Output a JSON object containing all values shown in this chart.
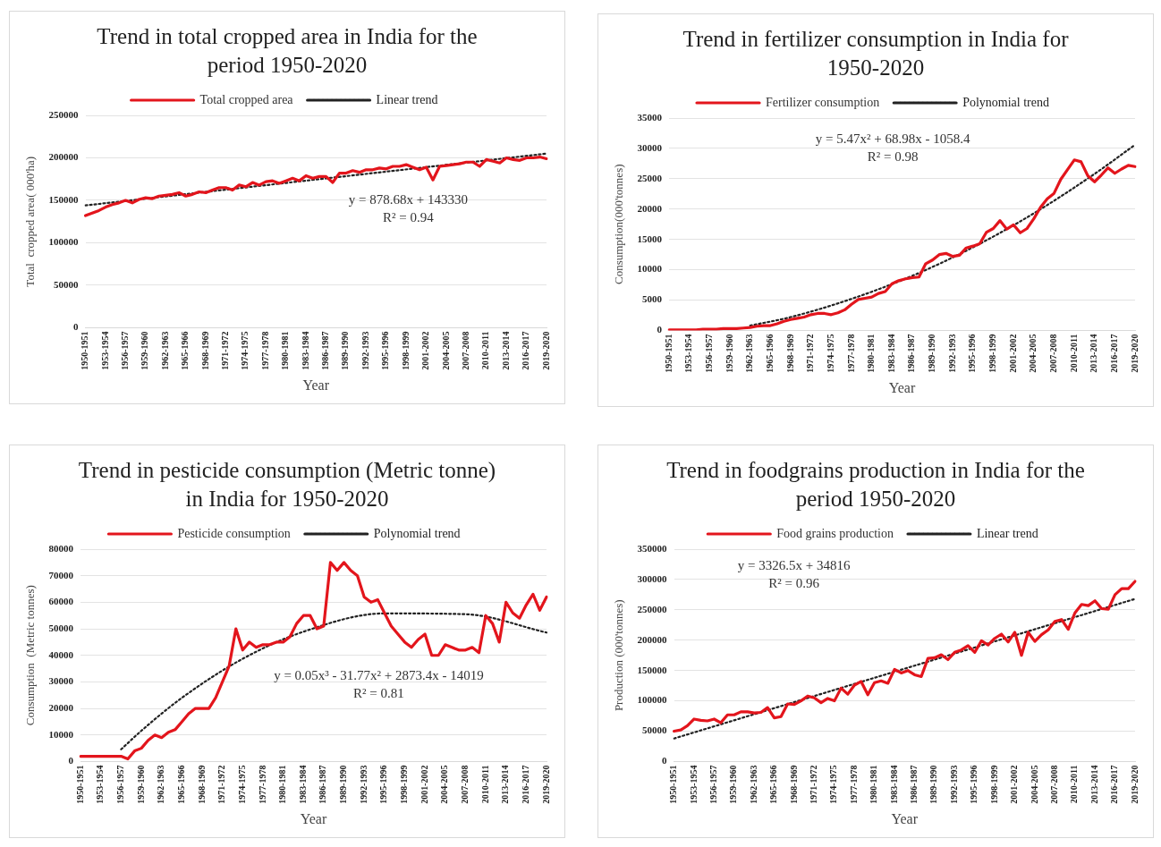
{
  "chart_data": [
    {
      "type": "line",
      "title": "Trend in total cropped area in India for the period 1950-2020",
      "xlabel": "Year",
      "ylabel": "Total  cropped area( 000'ha)",
      "legend": "top",
      "grid": "y",
      "marker": "none",
      "categories": [
        "1950-1951",
        null,
        null,
        "1953-1954",
        null,
        null,
        "1956-1957",
        null,
        null,
        "1959-1960",
        null,
        null,
        "1962-1963",
        null,
        null,
        "1965-1966",
        null,
        null,
        "1968-1969",
        null,
        null,
        "1971-1972",
        null,
        null,
        "1974-1975",
        null,
        null,
        "1977-1978",
        null,
        null,
        "1980-1981",
        null,
        null,
        "1983-1984",
        null,
        null,
        "1986-1987",
        null,
        null,
        "1989-1990",
        null,
        null,
        "1992-1993",
        null,
        null,
        "1995-1996",
        null,
        null,
        "1998-1999",
        null,
        null,
        "2001-2002",
        null,
        null,
        "2004-2005",
        null,
        null,
        "2007-2008",
        null,
        null,
        "2010-2011",
        null,
        null,
        "2013-2014",
        null,
        null,
        "2016-2017",
        null,
        null,
        "2019-2020"
      ],
      "ylim": [
        0,
        250000
      ],
      "yticks": [
        0,
        50000,
        100000,
        150000,
        200000,
        250000
      ],
      "series": [
        {
          "name": "Total cropped area",
          "type": "line",
          "color": "#e3151c",
          "line_style": "solid",
          "values": [
            132000,
            135000,
            138000,
            142000,
            145000,
            147000,
            150000,
            147000,
            151000,
            153000,
            152000,
            155000,
            156000,
            157000,
            159000,
            155000,
            157000,
            160000,
            159000,
            162000,
            165000,
            165000,
            162000,
            168000,
            166000,
            171000,
            168000,
            172000,
            173000,
            170000,
            173000,
            176000,
            173000,
            179000,
            176000,
            178000,
            178000,
            171000,
            182000,
            182000,
            185000,
            183000,
            186000,
            186000,
            188000,
            187000,
            190000,
            190000,
            192000,
            189000,
            186000,
            189000,
            174000,
            190000,
            191000,
            192000,
            193000,
            195000,
            195000,
            190000,
            198000,
            196000,
            194000,
            200000,
            198000,
            197000,
            200000,
            200000,
            201000,
            199000
          ]
        },
        {
          "name": "Linear trend",
          "type": "line",
          "color": "#222222",
          "line_style": "dotted",
          "x": [
            "1950-1951",
            "2019-2020"
          ],
          "values": [
            144000,
            205000
          ]
        }
      ],
      "annotations": [
        "y = 878.68x + 143330",
        "R² = 0.94"
      ]
    },
    {
      "type": "line",
      "title": "Trend in fertilizer consumption in India for 1950-2020",
      "xlabel": "Year",
      "ylabel": "Consumption(000'tonnes)",
      "legend": "top",
      "grid": "y",
      "marker": "none",
      "categories": [
        "1950-1951",
        null,
        null,
        "1953-1954",
        null,
        null,
        "1956-1957",
        null,
        null,
        "1959-1960",
        null,
        null,
        "1962-1963",
        null,
        null,
        "1965-1966",
        null,
        null,
        "1968-1969",
        null,
        null,
        "1971-1972",
        null,
        null,
        "1974-1975",
        null,
        null,
        "1977-1978",
        null,
        null,
        "1980-1981",
        null,
        null,
        "1983-1984",
        null,
        null,
        "1986-1987",
        null,
        null,
        "1989-1990",
        null,
        null,
        "1992-1993",
        null,
        null,
        "1995-1996",
        null,
        null,
        "1998-1999",
        null,
        null,
        "2001-2002",
        null,
        null,
        "2004-2005",
        null,
        null,
        "2007-2008",
        null,
        null,
        "2010-2011",
        null,
        null,
        "2013-2014",
        null,
        null,
        "2016-2017",
        null,
        null,
        "2019-2020"
      ],
      "ylim": [
        0,
        35000
      ],
      "yticks": [
        0,
        5000,
        10000,
        15000,
        20000,
        25000,
        30000,
        35000
      ],
      "series": [
        {
          "name": "Fertilizer consumption",
          "type": "line",
          "color": "#e3151c",
          "line_style": "solid",
          "values": [
            100,
            100,
            100,
            100,
            100,
            200,
            200,
            200,
            300,
            300,
            300,
            400,
            500,
            700,
            800,
            800,
            1100,
            1500,
            1800,
            2000,
            2200,
            2600,
            2800,
            2800,
            2600,
            2900,
            3400,
            4300,
            5100,
            5300,
            5500,
            6100,
            6400,
            7700,
            8200,
            8500,
            8700,
            8800,
            11000,
            11600,
            12500,
            12700,
            12200,
            12400,
            13600,
            13900,
            14300,
            16200,
            16800,
            18100,
            16700,
            17400,
            16100,
            16800,
            18400,
            20300,
            21700,
            22600,
            24900,
            26500,
            28100,
            27800,
            25500,
            24500,
            25600,
            26800,
            25900,
            26600,
            27200,
            27000
          ]
        },
        {
          "name": "Polynomial trend",
          "type": "line",
          "color": "#222222",
          "line_style": "dotted",
          "x": [
            "1962-1963",
            "1968-1969",
            "1977-1978",
            "1986-1987",
            "1995-1996",
            "2004-2005",
            "2013-2014",
            "2019-2020"
          ],
          "values": [
            800,
            2200,
            5200,
            9000,
            13700,
            19300,
            25800,
            30600
          ]
        }
      ],
      "annotations": [
        "y = 5.47x² + 68.98x - 1058.4",
        "R² = 0.98"
      ]
    },
    {
      "type": "line",
      "title": "Trend in pesticide consumption (Metric tonne) in India for 1950-2020",
      "xlabel": "Year",
      "ylabel": "Consumption  (Metric tonnes)",
      "legend": "top",
      "grid": "y",
      "marker": "none",
      "categories": [
        "1950-1951",
        null,
        null,
        "1953-1954",
        null,
        null,
        "1956-1957",
        null,
        null,
        "1959-1960",
        null,
        null,
        "1962-1963",
        null,
        null,
        "1965-1966",
        null,
        null,
        "1968-1969",
        null,
        null,
        "1971-1972",
        null,
        null,
        "1974-1975",
        null,
        null,
        "1977-1978",
        null,
        null,
        "1980-1981",
        null,
        null,
        "1983-1984",
        null,
        null,
        "1986-1987",
        null,
        null,
        "1989-1990",
        null,
        null,
        "1992-1993",
        null,
        null,
        "1995-1996",
        null,
        null,
        "1998-1999",
        null,
        null,
        "2001-2002",
        null,
        null,
        "2004-2005",
        null,
        null,
        "2007-2008",
        null,
        null,
        "2010-2011",
        null,
        null,
        "2013-2014",
        null,
        null,
        "2016-2017",
        null,
        null,
        "2019-2020"
      ],
      "ylim": [
        0,
        80000
      ],
      "yticks": [
        0,
        10000,
        20000,
        30000,
        40000,
        50000,
        60000,
        70000,
        80000
      ],
      "series": [
        {
          "name": "Pesticide consumption",
          "type": "line",
          "color": "#e3151c",
          "line_style": "solid",
          "values": [
            2000,
            2000,
            2000,
            2000,
            2000,
            2000,
            2000,
            1000,
            4000,
            5000,
            8000,
            10000,
            9000,
            11000,
            12000,
            15000,
            18000,
            20000,
            20000,
            20000,
            24000,
            30000,
            36000,
            50000,
            42000,
            45000,
            43000,
            44000,
            44000,
            45000,
            45000,
            47000,
            52000,
            55000,
            55000,
            50000,
            51000,
            75000,
            72000,
            75000,
            72000,
            70000,
            62000,
            60000,
            61000,
            56000,
            51000,
            48000,
            45000,
            43000,
            46000,
            48000,
            40000,
            40000,
            44000,
            43000,
            42000,
            42000,
            43000,
            41000,
            55000,
            52000,
            45000,
            60000,
            56000,
            54000,
            59000,
            63000,
            57000,
            62000
          ]
        },
        {
          "name": "Polynomial trend",
          "type": "line",
          "color": "#222222",
          "line_style": "dotted",
          "x": [
            "1956-1957",
            "1959-1960",
            "1965-1966",
            "1974-1975",
            "1983-1984",
            "1995-1996",
            "2007-2008",
            "2019-2020"
          ],
          "values": [
            4600,
            11600,
            24000,
            38700,
            48900,
            55800,
            55500,
            48600
          ]
        }
      ],
      "annotations": [
        "y = 0.05x³ - 31.77x² + 2873.4x - 14019",
        "R² = 0.81"
      ]
    },
    {
      "type": "line",
      "title": "Trend in foodgrains production in India for the period 1950-2020",
      "xlabel": "Year",
      "ylabel": "Production (000'tonnes)",
      "legend": "top",
      "grid": "y",
      "marker": "none",
      "categories": [
        "1950-1951",
        null,
        null,
        "1953-1954",
        null,
        null,
        "1956-1957",
        null,
        null,
        "1959-1960",
        null,
        null,
        "1962-1963",
        null,
        null,
        "1965-1966",
        null,
        null,
        "1968-1969",
        null,
        null,
        "1971-1972",
        null,
        null,
        "1974-1975",
        null,
        null,
        "1977-1978",
        null,
        null,
        "1980-1981",
        null,
        null,
        "1983-1984",
        null,
        null,
        "1986-1987",
        null,
        null,
        "1989-1990",
        null,
        null,
        "1992-1993",
        null,
        null,
        "1995-1996",
        null,
        null,
        "1998-1999",
        null,
        null,
        "2001-2002",
        null,
        null,
        "2004-2005",
        null,
        null,
        "2007-2008",
        null,
        null,
        "2010-2011",
        null,
        null,
        "2013-2014",
        null,
        null,
        "2016-2017",
        null,
        null,
        "2019-2020"
      ],
      "ylim": [
        0,
        350000
      ],
      "yticks": [
        0,
        50000,
        100000,
        150000,
        200000,
        250000,
        300000,
        350000
      ],
      "series": [
        {
          "name": "Food grains production",
          "type": "line",
          "color": "#e3151c",
          "line_style": "solid",
          "values": [
            50000,
            52000,
            59000,
            70000,
            68000,
            67000,
            70000,
            64000,
            77000,
            77000,
            82000,
            82000,
            80000,
            81000,
            89000,
            72000,
            74000,
            95000,
            94000,
            100000,
            108000,
            105000,
            97000,
            104000,
            100000,
            121000,
            111000,
            126000,
            132000,
            110000,
            130000,
            133000,
            129000,
            152000,
            146000,
            150000,
            143000,
            140000,
            170000,
            171000,
            176000,
            168000,
            180000,
            184000,
            191000,
            180000,
            199000,
            192000,
            203000,
            210000,
            197000,
            213000,
            175000,
            213000,
            198000,
            209000,
            217000,
            231000,
            234000,
            218000,
            245000,
            259000,
            257000,
            265000,
            252000,
            251000,
            275000,
            285000,
            285000,
            297000
          ]
        },
        {
          "name": "Linear trend",
          "type": "line",
          "color": "#222222",
          "line_style": "dotted",
          "x": [
            "1950-1951",
            "2019-2020"
          ],
          "values": [
            38000,
            268000
          ]
        }
      ],
      "annotations": [
        "y = 3326.5x + 34816",
        "R² = 0.96"
      ]
    }
  ]
}
